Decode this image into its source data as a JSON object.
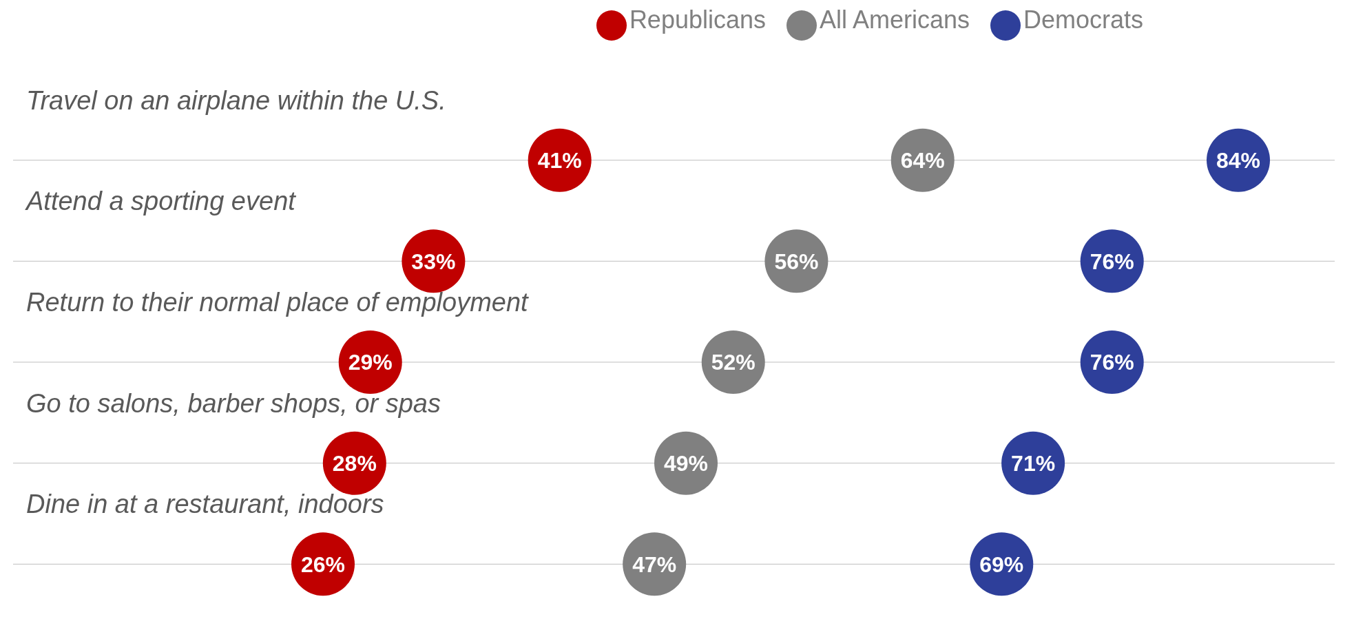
{
  "chart_data": {
    "type": "scatter",
    "orientation": "horizontal",
    "categories": [
      "Travel on an airplane within the U.S.",
      "Attend a sporting event",
      "Return to their normal place of employment",
      "Go to salons, barber shops, or spas",
      "Dine in at a restaurant, indoors"
    ],
    "series": [
      {
        "name": "Republicans",
        "color": "#c00000",
        "values": [
          41,
          33,
          29,
          28,
          26
        ],
        "value_labels": [
          "41%",
          "33%",
          "29%",
          "28%",
          "26%"
        ]
      },
      {
        "name": "All Americans",
        "color": "#808080",
        "values": [
          64,
          56,
          52,
          49,
          47
        ],
        "value_labels": [
          "64%",
          "56%",
          "52%",
          "49%",
          "47%"
        ]
      },
      {
        "name": "Democrats",
        "color": "#2e3f9a",
        "values": [
          84,
          76,
          76,
          71,
          69
        ],
        "value_labels": [
          "84%",
          "76%",
          "76%",
          "71%",
          "69%"
        ]
      }
    ],
    "grid": "y",
    "legend": "top",
    "marker": "circle",
    "tick_labels": "y"
  }
}
